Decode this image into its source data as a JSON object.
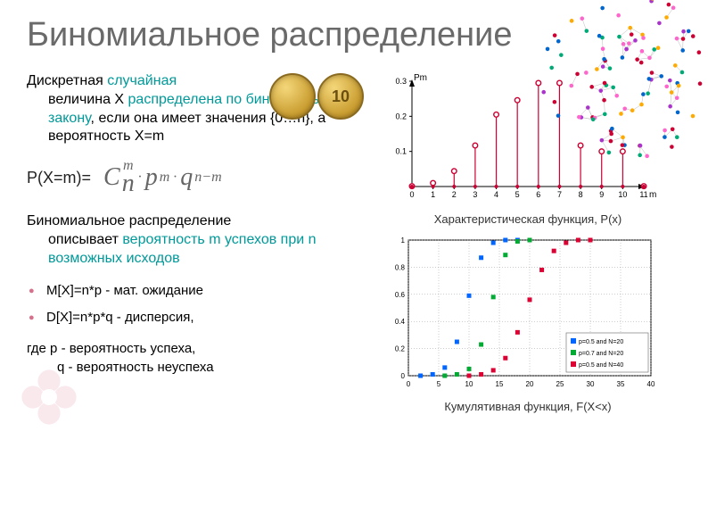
{
  "title": "Биномиальное распределение",
  "definition": {
    "line1": "Дискретная <teal>случайная</teal>",
    "line2_pre": "величина X ",
    "line2_teal": "распределена по биномиальному закону",
    "line2_post": ", если она имеет значения {0…n}, а вероятность X=m"
  },
  "formula_label": "P(X=m)=",
  "formula_parts": {
    "C": "C",
    "m_top": "m",
    "n_bot": "n",
    "p": "p",
    "m2": "m",
    "q": "q",
    "nm": "n−m"
  },
  "description": {
    "line1": "Биномиальное распределение описывает ",
    "teal": "вероятность m успехов при n возможных исходов",
    "line2": ""
  },
  "bullets": [
    "M[X]=n*p  - мат. ожидание",
    "D[X]=n*p*q - дисперсия,"
  ],
  "footer": {
    "line1": "где p - вероятность успеха,",
    "line2": "q - вероятность неуспеха"
  },
  "chart1": {
    "caption": "Характеристическая функция, P(x)",
    "xmax": 11,
    "xticks": [
      0,
      1,
      2,
      3,
      4,
      5,
      6,
      7,
      8,
      9,
      10,
      11
    ],
    "yticks": [
      0.1,
      0.2,
      0.3
    ],
    "xlabel": "m",
    "ylabel": "Pm",
    "stem_color": "#cc0033",
    "marker_color": "#cc0033",
    "axis_color": "#000000",
    "data": [
      {
        "x": 0,
        "y": 0.001
      },
      {
        "x": 1,
        "y": 0.01
      },
      {
        "x": 2,
        "y": 0.044
      },
      {
        "x": 3,
        "y": 0.117
      },
      {
        "x": 4,
        "y": 0.205
      },
      {
        "x": 5,
        "y": 0.246
      },
      {
        "x": 6,
        "y": 0.295
      },
      {
        "x": 7,
        "y": 0.295
      },
      {
        "x": 8,
        "y": 0.117
      },
      {
        "x": 9,
        "y": 0.1
      },
      {
        "x": 10,
        "y": 0.1
      },
      {
        "x": 11,
        "y": 0.001
      }
    ]
  },
  "chart2": {
    "caption": "Кумулятивная функция, F(X<x)",
    "xlim": [
      0,
      40
    ],
    "ylim": [
      0,
      1
    ],
    "xticks": [
      0,
      5,
      10,
      15,
      20,
      25,
      30,
      35,
      40
    ],
    "yticks": [
      0,
      0.2,
      0.4,
      0.6,
      0.8,
      1
    ],
    "grid_color": "#999999",
    "axis_color": "#000000",
    "legend": [
      {
        "label": "p=0.5 and N=20",
        "color": "#0066ff"
      },
      {
        "label": "p=0.7 and N=20",
        "color": "#00aa33"
      },
      {
        "label": "p=0.5 and N=40",
        "color": "#dd0033"
      }
    ],
    "series": [
      {
        "color": "#0066ff",
        "points": [
          [
            2,
            0.0
          ],
          [
            4,
            0.01
          ],
          [
            6,
            0.06
          ],
          [
            8,
            0.25
          ],
          [
            10,
            0.59
          ],
          [
            12,
            0.87
          ],
          [
            14,
            0.98
          ],
          [
            16,
            1.0
          ],
          [
            18,
            1.0
          ],
          [
            20,
            1.0
          ]
        ]
      },
      {
        "color": "#00aa33",
        "points": [
          [
            6,
            0.0
          ],
          [
            8,
            0.01
          ],
          [
            10,
            0.05
          ],
          [
            12,
            0.23
          ],
          [
            14,
            0.58
          ],
          [
            16,
            0.89
          ],
          [
            18,
            0.99
          ],
          [
            20,
            1.0
          ]
        ]
      },
      {
        "color": "#dd0033",
        "points": [
          [
            10,
            0.0
          ],
          [
            12,
            0.01
          ],
          [
            14,
            0.04
          ],
          [
            16,
            0.13
          ],
          [
            18,
            0.32
          ],
          [
            20,
            0.56
          ],
          [
            22,
            0.78
          ],
          [
            24,
            0.92
          ],
          [
            26,
            0.98
          ],
          [
            28,
            1.0
          ],
          [
            30,
            1.0
          ]
        ]
      }
    ]
  },
  "coin_label": "10",
  "colors": {
    "title": "#6a6a6a",
    "teal": "#009999",
    "bullet": "#d86f8b",
    "formula": "#666666"
  }
}
